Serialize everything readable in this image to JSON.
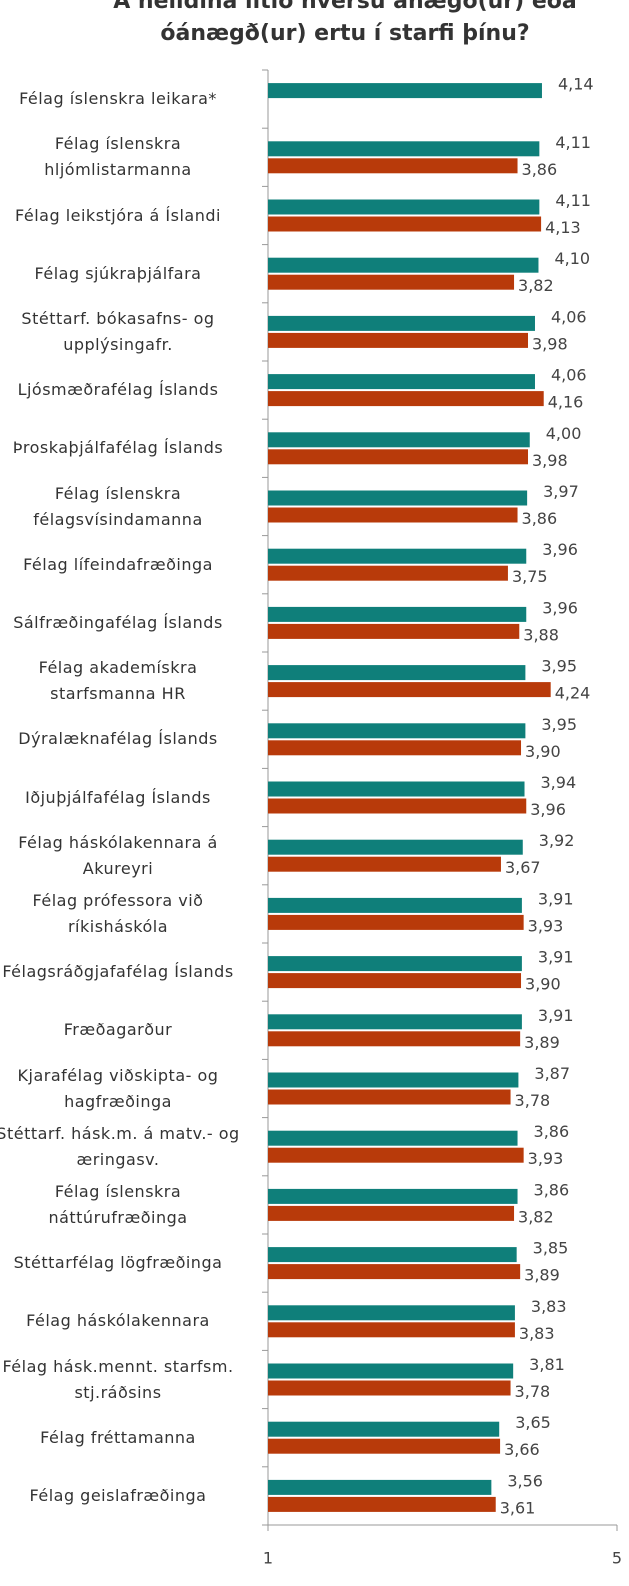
{
  "chart_data": {
    "type": "bar",
    "orientation": "horizontal",
    "title": "Á heildina litið hversu ánægð(ur) eða\nóánægð(ur) ertu í starfi þínu?",
    "categories": [
      "Félag íslenskra leikara*",
      "Félag íslenskra\nhljómlistarmanna",
      "Félag leikstjóra á Íslandi",
      "Félag sjúkraþjálfara",
      "Stéttarf. bókasafns- og\nupplýsingafr.",
      "Ljósmæðrafélag Íslands",
      "Þroskaþjálfafélag Íslands",
      "Félag íslenskra\nfélagsvísindamanna",
      "Félag lífeindafræðinga",
      "Sálfræðingafélag Íslands",
      "Félag akademískra\nstarfsmanna HR",
      "Dýralæknafélag Íslands",
      "Iðjuþjálfafélag Íslands",
      "Félag háskólakennara á\nAkureyri",
      "Félag prófessora við\nríkisháskóla",
      "Félagsráðgjafafélag Íslands",
      "Fræðagarður",
      "Kjarafélag viðskipta- og\nhagfræðinga",
      "Stéttarf. hásk.m. á matv.- og\næringasv.",
      "Félag íslenskra\nnáttúrufræðinga",
      "Stéttarfélag lögfræðinga",
      "Félag háskólakennara",
      "Félag hásk.mennt. starfsm.\nstj.ráðsins",
      "Félag fréttamanna",
      "Félag geislafræðinga"
    ],
    "series": [
      {
        "color": "#0f7f7a",
        "values": [
          4.14,
          4.11,
          4.11,
          4.1,
          4.06,
          4.06,
          4.0,
          3.97,
          3.96,
          3.96,
          3.95,
          3.95,
          3.94,
          3.92,
          3.91,
          3.91,
          3.91,
          3.87,
          3.86,
          3.86,
          3.85,
          3.83,
          3.81,
          3.65,
          3.56
        ],
        "value_labels": [
          "4,14",
          "4,11",
          "4,11",
          "4,10",
          "4,06",
          "4,06",
          "4,00",
          "3,97",
          "3,96",
          "3,96",
          "3,95",
          "3,95",
          "3,94",
          "3,92",
          "3,91",
          "3,91",
          "3,91",
          "3,87",
          "3,86",
          "3,86",
          "3,85",
          "3,83",
          "3,81",
          "3,65",
          "3,56"
        ]
      },
      {
        "color": "#b83a0a",
        "values": [
          null,
          3.86,
          4.13,
          3.82,
          3.98,
          4.16,
          3.98,
          3.86,
          3.75,
          3.88,
          4.24,
          3.9,
          3.96,
          3.67,
          3.93,
          3.9,
          3.89,
          3.78,
          3.93,
          3.82,
          3.89,
          3.83,
          3.78,
          3.66,
          3.61
        ],
        "value_labels": [
          null,
          "3,86",
          "4,13",
          "3,82",
          "3,98",
          "4,16",
          "3,98",
          "3,86",
          "3,75",
          "3,88",
          "4,24",
          "3,90",
          "3,96",
          "3,67",
          "3,93",
          "3,90",
          "3,89",
          "3,78",
          "3,93",
          "3,82",
          "3,89",
          "3,83",
          "3,78",
          "3,66",
          "3,61"
        ]
      }
    ],
    "xlim": [
      1,
      5
    ],
    "xticks": [
      1,
      5
    ]
  }
}
